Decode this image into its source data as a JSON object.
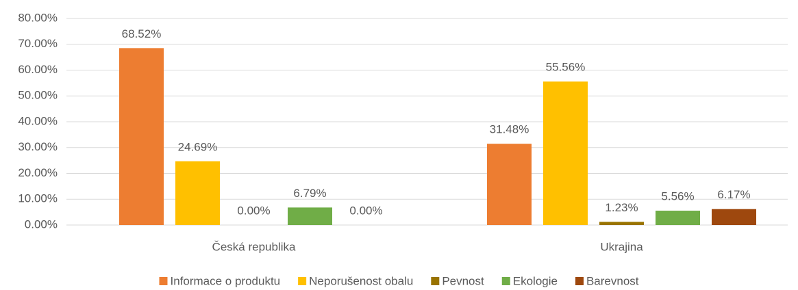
{
  "chart_data": {
    "type": "bar",
    "categories": [
      "Česká republika",
      "Ukrajina"
    ],
    "series": [
      {
        "name": "Informace o produktu",
        "color": "#ed7d31",
        "values": [
          68.52,
          31.48
        ],
        "value_labels": [
          "68.52%",
          "31.48%"
        ]
      },
      {
        "name": "Neporušenost obalu",
        "color": "#ffc000",
        "values": [
          24.69,
          55.56
        ],
        "value_labels": [
          "24.69%",
          "55.56%"
        ]
      },
      {
        "name": "Pevnost",
        "color": "#997300",
        "values": [
          0,
          1.23
        ],
        "value_labels": [
          "0.00%",
          "1.23%"
        ]
      },
      {
        "name": "Ekologie",
        "color": "#70ad47",
        "values": [
          6.79,
          5.56
        ],
        "value_labels": [
          "6.79%",
          "5.56%"
        ]
      },
      {
        "name": "Barevnost",
        "color": "#9e480e",
        "values": [
          0,
          6.17
        ],
        "value_labels": [
          "0.00%",
          "6.17%"
        ]
      }
    ],
    "ylim": [
      0,
      80
    ],
    "yticks": [
      {
        "value": 0,
        "label": "0.00%"
      },
      {
        "value": 10,
        "label": "10.00%"
      },
      {
        "value": 20,
        "label": "20.00%"
      },
      {
        "value": 30,
        "label": "30.00%"
      },
      {
        "value": 40,
        "label": "40.00%"
      },
      {
        "value": 50,
        "label": "50.00%"
      },
      {
        "value": 60,
        "label": "60.00%"
      },
      {
        "value": 70,
        "label": "70.00%"
      },
      {
        "value": 80,
        "label": "80.00%"
      }
    ],
    "grid": true,
    "legend": "bottom"
  }
}
